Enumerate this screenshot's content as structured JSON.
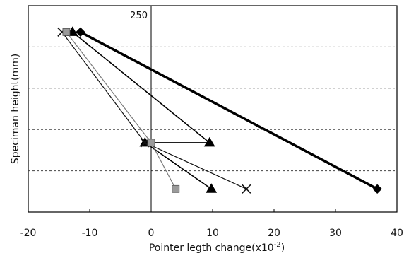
{
  "chart_data": {
    "type": "line",
    "title": "",
    "xlabel": "Pointer legth change(x10",
    "xlabel_sup": "-2",
    "xlabel_close": ")",
    "ylabel": "Speciman height(mm)",
    "xlim": [
      -20,
      40
    ],
    "ylim": [
      0,
      250
    ],
    "x_ticks": [
      -20,
      -10,
      0,
      10,
      20,
      30,
      40
    ],
    "x_tick_labels": [
      "-20",
      "-10",
      "0",
      "10",
      "20",
      "30",
      "40"
    ],
    "y_gridlines": [
      50,
      100,
      150,
      200
    ],
    "y_annotation": "250",
    "grid": "horizontal-dashed",
    "series": [
      {
        "marker": "diamond",
        "color": "#000000",
        "line_width": 3.5,
        "x": [
          -11.5,
          36.8
        ],
        "y": [
          218,
          28
        ]
      },
      {
        "marker": "triangle",
        "color": "#000000",
        "line_width": 1.6,
        "x": [
          -12.8,
          9.5,
          -1,
          9.8
        ],
        "y": [
          218,
          84,
          84,
          28
        ]
      },
      {
        "marker": "x",
        "color": "#111111",
        "line_width": 1.2,
        "x": [
          -14.5,
          -1,
          15.5
        ],
        "y": [
          218,
          84,
          28
        ]
      },
      {
        "marker": "square",
        "color": "#7a7a7a",
        "line_width": 1.2,
        "x": [
          -13.8,
          0,
          4.0
        ],
        "y": [
          218,
          84,
          28
        ]
      }
    ]
  }
}
